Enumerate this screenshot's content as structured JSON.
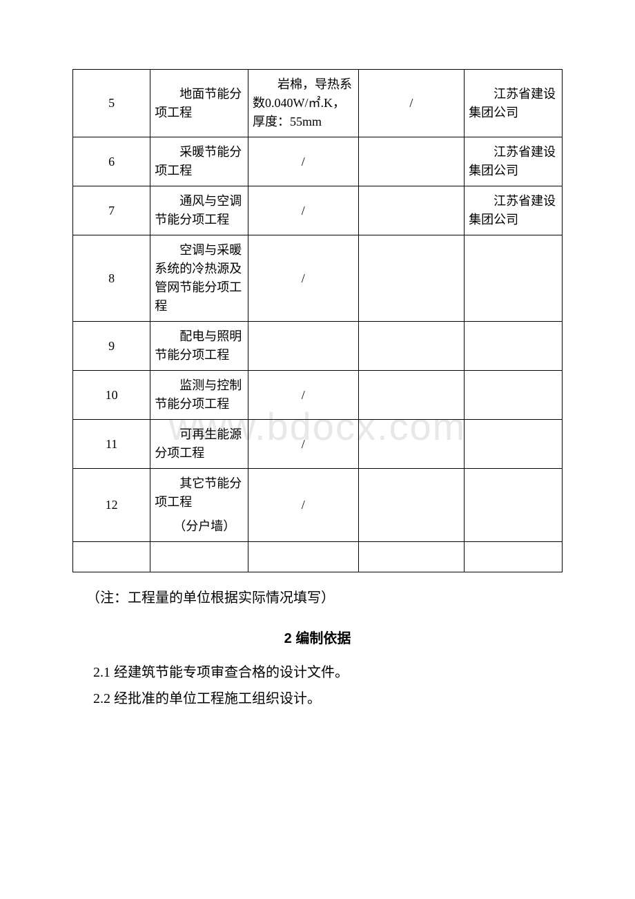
{
  "watermark": "www.bdocx.com",
  "table": {
    "columns_count": 5,
    "border_color": "#000000",
    "background_color": "#ffffff",
    "font_size": 18,
    "rows": [
      {
        "num": "5",
        "name": "　　地面节能分项工程",
        "spec": "　　岩棉，导热系数0.040W/㎡.K，厚度：55mm",
        "spec_align": "left",
        "qty": "/",
        "unit": "　　江苏省建设集团公司"
      },
      {
        "num": "6",
        "name": "　　采暖节能分项工程",
        "spec": "/",
        "spec_align": "center",
        "qty": "",
        "unit": "　　江苏省建设集团公司"
      },
      {
        "num": "7",
        "name": "　　通风与空调节能分项工程",
        "spec": "/",
        "spec_align": "center",
        "qty": "",
        "unit": "　　江苏省建设集团公司"
      },
      {
        "num": "8",
        "name": "　　空调与采暖系统的冷热源及管网节能分项工程",
        "spec": "/",
        "spec_align": "center",
        "qty": "",
        "unit": ""
      },
      {
        "num": "9",
        "name": "　　配电与照明节能分项工程",
        "spec": "",
        "spec_align": "center",
        "qty": "",
        "unit": ""
      },
      {
        "num": "10",
        "name": "　　监测与控制节能分项工程",
        "spec": "/",
        "spec_align": "center",
        "qty": "",
        "unit": ""
      },
      {
        "num": "11",
        "name": "　　可再生能源分项工程",
        "spec": "/",
        "spec_align": "center",
        "qty": "",
        "unit": ""
      },
      {
        "num": "12",
        "name": "　　其它节能分项工程\n　　（分户墙）",
        "spec": "/",
        "spec_align": "center",
        "qty": "",
        "unit": ""
      },
      {
        "num": "",
        "name": "",
        "spec": "",
        "spec_align": "center",
        "qty": "",
        "unit": ""
      }
    ]
  },
  "note": "（注：工程量的单位根据实际情况填写）",
  "section": {
    "title": "2 编制依据",
    "items": [
      "2.1 经建筑节能专项审查合格的设计文件。",
      "2.2 经批准的单位工程施工组织设计。"
    ]
  },
  "colors": {
    "text": "#000000",
    "background": "#ffffff",
    "watermark": "#e8e8e8",
    "border": "#000000"
  },
  "fonts": {
    "body_family": "SimSun",
    "title_family": "SimHei",
    "table_size": 18,
    "body_size": 20,
    "title_size": 20,
    "watermark_size": 56
  }
}
